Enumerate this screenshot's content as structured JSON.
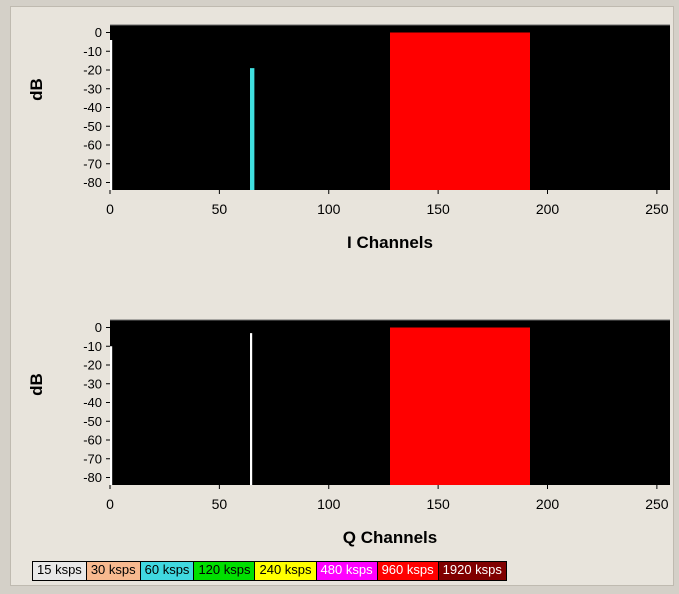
{
  "chart_data": [
    {
      "type": "bar",
      "title": "",
      "xlabel": "I Channels",
      "ylabel": "dB",
      "xlim": [
        0,
        256
      ],
      "ylim": [
        -84,
        4
      ],
      "xticks": [
        "0",
        "50",
        "100",
        "150",
        "200",
        "250"
      ],
      "yticks": [
        "0",
        "-10",
        "-20",
        "-30",
        "-40",
        "-50",
        "-60",
        "-70",
        "-80"
      ],
      "grid": false,
      "series": [
        {
          "rate": "15 ksps",
          "color": "#ffffff",
          "x_start": 0,
          "x_end": 1,
          "value": -4
        },
        {
          "rate": "60 ksps",
          "color": "#40e0e0",
          "x_start": 64,
          "x_end": 66,
          "value": -19
        },
        {
          "rate": "960 ksps",
          "color": "#ff0000",
          "x_start": 128,
          "x_end": 192,
          "value": 0
        }
      ]
    },
    {
      "type": "bar",
      "title": "",
      "xlabel": "Q Channels",
      "ylabel": "dB",
      "xlim": [
        0,
        256
      ],
      "ylim": [
        -84,
        4
      ],
      "xticks": [
        "0",
        "50",
        "100",
        "150",
        "200",
        "250"
      ],
      "yticks": [
        "0",
        "-10",
        "-20",
        "-30",
        "-40",
        "-50",
        "-60",
        "-70",
        "-80"
      ],
      "grid": false,
      "series": [
        {
          "rate": "15 ksps",
          "color": "#ffffff",
          "x_start": 0,
          "x_end": 1,
          "value": -10
        },
        {
          "rate": "15 ksps",
          "color": "#ffffff",
          "x_start": 64,
          "x_end": 65,
          "value": -3
        },
        {
          "rate": "960 ksps",
          "color": "#ff0000",
          "x_start": 128,
          "x_end": 192,
          "value": 0
        }
      ]
    }
  ],
  "legend": [
    {
      "label": "15 ksps",
      "bg": "#e8e8e8",
      "fg": "#000000"
    },
    {
      "label": "30 ksps",
      "bg": "#f7b98f",
      "fg": "#000000"
    },
    {
      "label": "60 ksps",
      "bg": "#40d8e0",
      "fg": "#000000"
    },
    {
      "label": "120 ksps",
      "bg": "#00e000",
      "fg": "#000000"
    },
    {
      "label": "240 ksps",
      "bg": "#ffff00",
      "fg": "#000000"
    },
    {
      "label": "480 ksps",
      "bg": "#ff00ff",
      "fg": "#ffffff"
    },
    {
      "label": "960 ksps",
      "bg": "#ff0000",
      "fg": "#ffffff"
    },
    {
      "label": "1920 ksps",
      "bg": "#800000",
      "fg": "#ffffff"
    }
  ]
}
